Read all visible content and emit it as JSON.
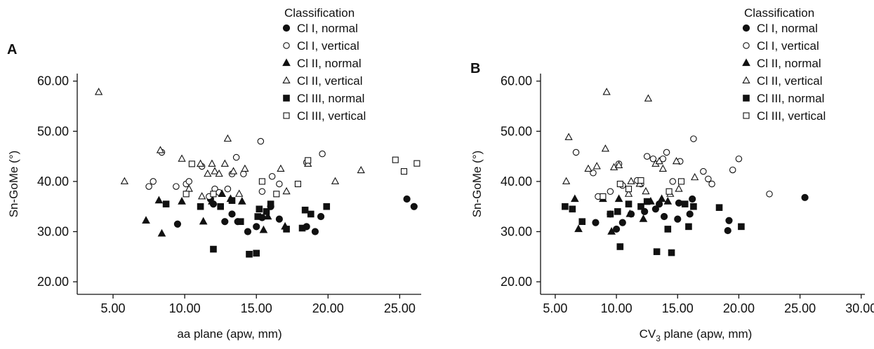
{
  "chart_data": [
    {
      "type": "scatter",
      "panel": "A",
      "xlabel": "aa plane (apw, mm)",
      "ylabel": "Sn-GoMe (°)",
      "xlim": [
        2.5,
        26.5
      ],
      "ylim": [
        17.5,
        61.5
      ],
      "xticks": [
        "5.00",
        "10.00",
        "15.00",
        "20.00",
        "25.00"
      ],
      "xtick_values": [
        5,
        10,
        15,
        20,
        25
      ],
      "yticks": [
        "20.00",
        "30.00",
        "40.00",
        "50.00",
        "60.00"
      ],
      "ytick_values": [
        20,
        30,
        40,
        50,
        60
      ],
      "legend_title": "Classification",
      "legend_position": "top-right",
      "series": [
        {
          "name": "Cl I, normal",
          "marker": "circle",
          "filled": true,
          "points": [
            [
              9.5,
              31.5
            ],
            [
              11.8,
              36.5
            ],
            [
              12,
              35.5
            ],
            [
              12.8,
              32
            ],
            [
              13.3,
              33.5
            ],
            [
              13.7,
              32
            ],
            [
              14.4,
              30
            ],
            [
              15,
              31
            ],
            [
              15.4,
              32.8
            ],
            [
              16,
              35
            ],
            [
              16.6,
              32.5
            ],
            [
              18.5,
              31
            ],
            [
              19.1,
              30
            ],
            [
              19.5,
              33
            ],
            [
              25.5,
              36.5
            ],
            [
              26,
              35
            ]
          ]
        },
        {
          "name": "Cl I, vertical",
          "marker": "circle",
          "filled": false,
          "points": [
            [
              7.5,
              39
            ],
            [
              7.8,
              40
            ],
            [
              8.4,
              45.8
            ],
            [
              9.4,
              39
            ],
            [
              10.1,
              39.5
            ],
            [
              10.3,
              40
            ],
            [
              11.2,
              43
            ],
            [
              11.7,
              37
            ],
            [
              12.1,
              38.5
            ],
            [
              12.4,
              37.8
            ],
            [
              13,
              38.5
            ],
            [
              13.3,
              41.5
            ],
            [
              13.6,
              44.8
            ],
            [
              14.1,
              41.5
            ],
            [
              15.3,
              48
            ],
            [
              15.4,
              38
            ],
            [
              16.1,
              41
            ],
            [
              16.6,
              39.5
            ],
            [
              18.5,
              43.8
            ],
            [
              19.6,
              45.5
            ]
          ]
        },
        {
          "name": "Cl II, normal",
          "marker": "triangle",
          "filled": true,
          "points": [
            [
              7.3,
              32.2
            ],
            [
              8.2,
              36.2
            ],
            [
              8.4,
              29.6
            ],
            [
              9.8,
              36
            ],
            [
              11.3,
              32
            ],
            [
              11.9,
              36
            ],
            [
              12.6,
              37.5
            ],
            [
              13.2,
              36.5
            ],
            [
              14,
              36
            ],
            [
              15.5,
              30.3
            ],
            [
              15.8,
              33
            ],
            [
              17,
              31
            ]
          ]
        },
        {
          "name": "Cl II, vertical",
          "marker": "triangle",
          "filled": false,
          "points": [
            [
              4,
              57.8
            ],
            [
              5.8,
              40
            ],
            [
              8.3,
              46.2
            ],
            [
              9.8,
              44.5
            ],
            [
              10.3,
              38.5
            ],
            [
              11.1,
              43.5
            ],
            [
              11.2,
              37
            ],
            [
              11.6,
              41.5
            ],
            [
              11.9,
              43.5
            ],
            [
              12.1,
              42
            ],
            [
              12.4,
              41.5
            ],
            [
              12.8,
              43.5
            ],
            [
              13,
              48.5
            ],
            [
              13.4,
              42
            ],
            [
              13.8,
              37.5
            ],
            [
              14.2,
              42.5
            ],
            [
              16.7,
              42.5
            ],
            [
              17.1,
              38
            ],
            [
              18.6,
              43.5
            ],
            [
              20.5,
              40
            ],
            [
              22.3,
              42.2
            ]
          ]
        },
        {
          "name": "Cl III, normal",
          "marker": "square",
          "filled": true,
          "points": [
            [
              8.7,
              35.5
            ],
            [
              11.1,
              35
            ],
            [
              12,
              26.5
            ],
            [
              12.5,
              35
            ],
            [
              13.3,
              36.2
            ],
            [
              13.9,
              32
            ],
            [
              14.5,
              25.5
            ],
            [
              15,
              25.7
            ],
            [
              15.1,
              33
            ],
            [
              15.2,
              34.5
            ],
            [
              15.7,
              34
            ],
            [
              16,
              35.5
            ],
            [
              17.1,
              30.5
            ],
            [
              18.2,
              30.7
            ],
            [
              18.4,
              34.3
            ],
            [
              18.8,
              33.5
            ],
            [
              19.9,
              35
            ]
          ]
        },
        {
          "name": "Cl III, vertical",
          "marker": "square",
          "filled": false,
          "points": [
            [
              10.1,
              37.5
            ],
            [
              10.5,
              43.5
            ],
            [
              12,
              37.5
            ],
            [
              15.4,
              40
            ],
            [
              16.4,
              37.5
            ],
            [
              17.9,
              39.5
            ],
            [
              18.6,
              44.2
            ],
            [
              24.7,
              44.3
            ],
            [
              25.3,
              42
            ],
            [
              26.2,
              43.6
            ]
          ]
        }
      ]
    },
    {
      "type": "scatter",
      "panel": "B",
      "xlabel": "CV3 plane (apw, mm)",
      "xlabel_main": "CV",
      "xlabel_sub": "3",
      "xlabel_rest": " plane (apw, mm)",
      "ylabel": "Sn-GoMe (°)",
      "xlim": [
        3.8,
        30.3
      ],
      "ylim": [
        17.5,
        61.5
      ],
      "xticks": [
        "5.00",
        "10.00",
        "15.00",
        "20.00",
        "25.00",
        "30.00"
      ],
      "xtick_values": [
        5,
        10,
        15,
        20,
        25,
        30
      ],
      "yticks": [
        "20.00",
        "30.00",
        "40.00",
        "50.00",
        "60.00"
      ],
      "ytick_values": [
        20,
        30,
        40,
        50,
        60
      ],
      "legend_title": "Classification",
      "legend_position": "top-right",
      "series": [
        {
          "name": "Cl I, normal",
          "marker": "circle",
          "filled": true,
          "points": [
            [
              8.3,
              31.8
            ],
            [
              9.5,
              33.5
            ],
            [
              10,
              30.5
            ],
            [
              10.5,
              31.8
            ],
            [
              11.2,
              33.5
            ],
            [
              12.3,
              34
            ],
            [
              13.2,
              34.5
            ],
            [
              13.5,
              35.5
            ],
            [
              13.9,
              33
            ],
            [
              15,
              32.5
            ],
            [
              15.1,
              35.7
            ],
            [
              16,
              33.5
            ],
            [
              16.2,
              36.5
            ],
            [
              19.1,
              30.2
            ],
            [
              19.2,
              32.2
            ],
            [
              25.4,
              36.8
            ]
          ]
        },
        {
          "name": "Cl I, vertical",
          "marker": "circle",
          "filled": false,
          "points": [
            [
              6.7,
              45.8
            ],
            [
              8.1,
              41.7
            ],
            [
              8.5,
              37
            ],
            [
              9.5,
              38
            ],
            [
              10.2,
              43.5
            ],
            [
              10.5,
              39.2
            ],
            [
              11.7,
              40.2
            ],
            [
              12,
              39.5
            ],
            [
              12.5,
              45
            ],
            [
              13,
              44.5
            ],
            [
              13.8,
              44.5
            ],
            [
              14.1,
              45.8
            ],
            [
              14.6,
              40
            ],
            [
              15.2,
              44
            ],
            [
              16.3,
              48.5
            ],
            [
              17.1,
              42
            ],
            [
              17.5,
              40.5
            ],
            [
              17.8,
              39.5
            ],
            [
              19.5,
              42.3
            ],
            [
              20,
              44.5
            ],
            [
              22.5,
              37.5
            ]
          ]
        },
        {
          "name": "Cl II, normal",
          "marker": "triangle",
          "filled": true,
          "points": [
            [
              6.6,
              36.5
            ],
            [
              6.9,
              30.5
            ],
            [
              8.9,
              36.5
            ],
            [
              9.6,
              30
            ],
            [
              10.2,
              36.5
            ],
            [
              11.1,
              33.5
            ],
            [
              12.2,
              32.5
            ],
            [
              12.8,
              36
            ],
            [
              13.7,
              36.5
            ],
            [
              14.2,
              36
            ]
          ]
        },
        {
          "name": "Cl II, vertical",
          "marker": "triangle",
          "filled": false,
          "points": [
            [
              5.9,
              40
            ],
            [
              6.1,
              48.8
            ],
            [
              7.7,
              42.5
            ],
            [
              8.4,
              43
            ],
            [
              9.1,
              46.5
            ],
            [
              9.2,
              57.8
            ],
            [
              9.8,
              42.8
            ],
            [
              10.2,
              43.2
            ],
            [
              11,
              37.5
            ],
            [
              11.2,
              40
            ],
            [
              11.9,
              39.5
            ],
            [
              12.4,
              38
            ],
            [
              12.6,
              56.5
            ],
            [
              13.2,
              43.5
            ],
            [
              13.5,
              44
            ],
            [
              13.8,
              42.5
            ],
            [
              14.4,
              37.5
            ],
            [
              14.9,
              44
            ],
            [
              15.1,
              38.5
            ],
            [
              16.4,
              40.8
            ]
          ]
        },
        {
          "name": "Cl III, normal",
          "marker": "square",
          "filled": true,
          "points": [
            [
              5.8,
              35
            ],
            [
              6.4,
              34.5
            ],
            [
              7.2,
              32
            ],
            [
              9.5,
              33.5
            ],
            [
              10.1,
              34
            ],
            [
              10.3,
              27
            ],
            [
              11,
              35.5
            ],
            [
              12,
              35
            ],
            [
              12.5,
              36
            ],
            [
              13.3,
              26
            ],
            [
              14.2,
              30.5
            ],
            [
              14.5,
              25.8
            ],
            [
              15.6,
              35.5
            ],
            [
              15.9,
              31
            ],
            [
              16.3,
              35
            ],
            [
              18.4,
              34.8
            ],
            [
              20.2,
              31
            ]
          ]
        },
        {
          "name": "Cl III, vertical",
          "marker": "square",
          "filled": false,
          "points": [
            [
              8.9,
              37
            ],
            [
              10.3,
              39.5
            ],
            [
              11,
              38.5
            ],
            [
              12,
              40.2
            ],
            [
              14.3,
              38
            ],
            [
              15.3,
              40
            ]
          ]
        }
      ]
    }
  ]
}
